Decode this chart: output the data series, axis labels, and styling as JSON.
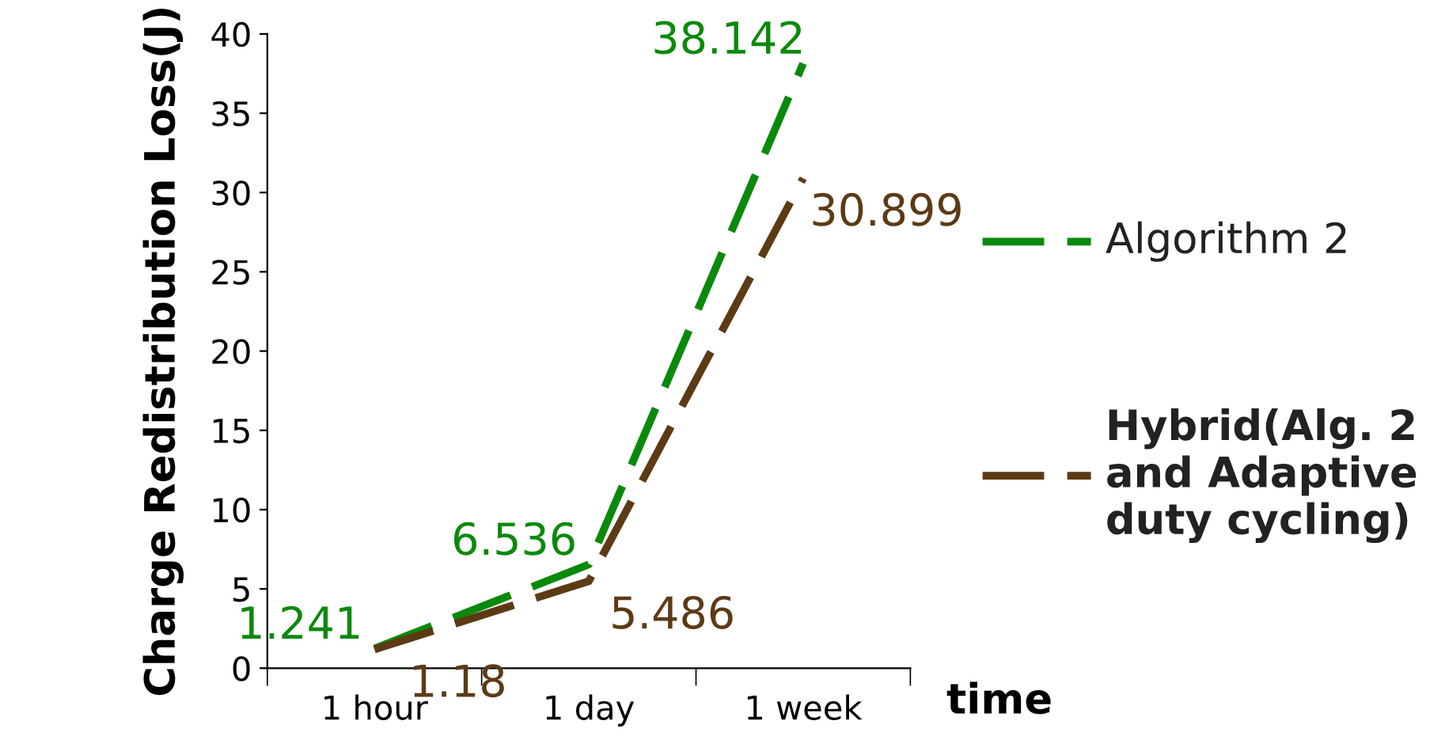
{
  "chart_data": {
    "type": "line",
    "xlabel": "time",
    "ylabel": "Charge Redistribution Loss(J)",
    "categories": [
      "1 hour",
      "1 day",
      "1 week"
    ],
    "series": [
      {
        "name": "Algorithm 2",
        "color": "#0a8a0a",
        "values": [
          1.241,
          6.536,
          38.142
        ],
        "line_style": "dashed"
      },
      {
        "name": "Hybrid(Alg. 2 and Adaptive duty cycling)",
        "color": "#5c3a14",
        "values": [
          1.18,
          5.486,
          30.899
        ],
        "line_style": "dashed"
      }
    ],
    "ylim": [
      0,
      40
    ],
    "yticks": [
      0,
      5,
      10,
      15,
      20,
      25,
      30,
      35,
      40
    ],
    "data_labels": true,
    "legend": "right",
    "grid": false,
    "marker": "none"
  }
}
